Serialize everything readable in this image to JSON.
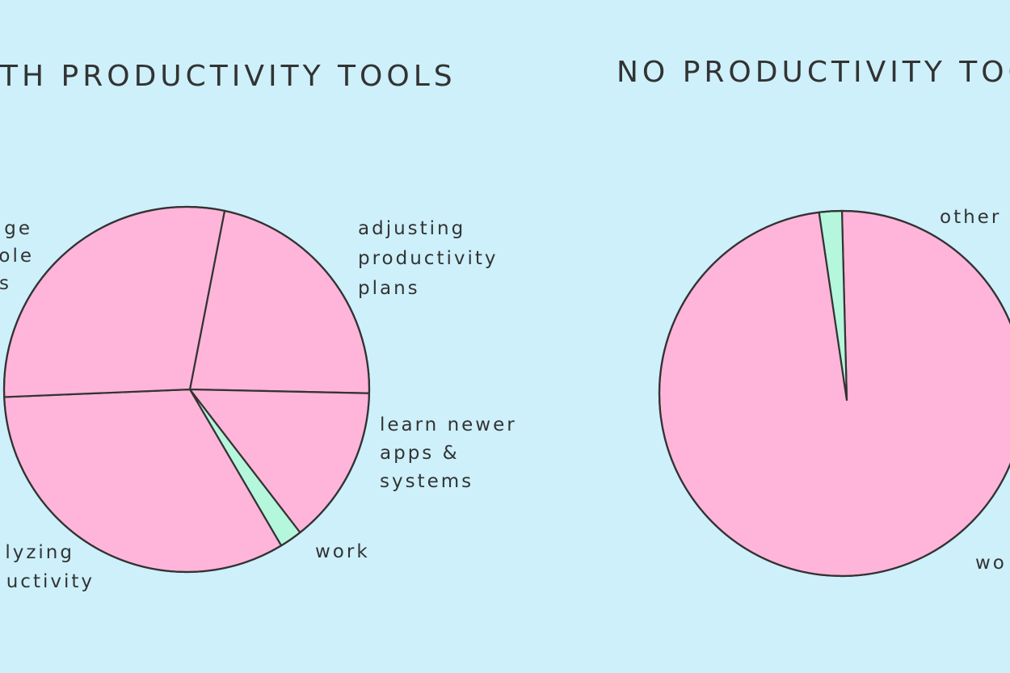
{
  "colors": {
    "background": "#cdf0fb",
    "other_slices": "#ffb5d9",
    "work_slice": "#b5f7dc",
    "stroke": "#333333"
  },
  "chart_data": [
    {
      "type": "pie",
      "title": "TH PRODUCTIVITY TOOLS",
      "slices": [
        {
          "label": [
            "adjusting",
            "productivity",
            "plans"
          ],
          "value": 22
        },
        {
          "label": [
            "learn newer",
            "apps &",
            "systems"
          ],
          "value": 14
        },
        {
          "label": [
            "work"
          ],
          "value": 2
        },
        {
          "label": [
            "lyzing",
            "uctivity"
          ],
          "value": 33
        },
        {
          "label": [
            "ge",
            "ole",
            "s"
          ],
          "value": 29
        }
      ]
    },
    {
      "type": "pie",
      "title": "NO PRODUCTIVITY TOO",
      "slices": [
        {
          "label": [
            "other"
          ],
          "value": 98
        },
        {
          "label": [
            "wo"
          ],
          "value": 2
        }
      ]
    }
  ]
}
